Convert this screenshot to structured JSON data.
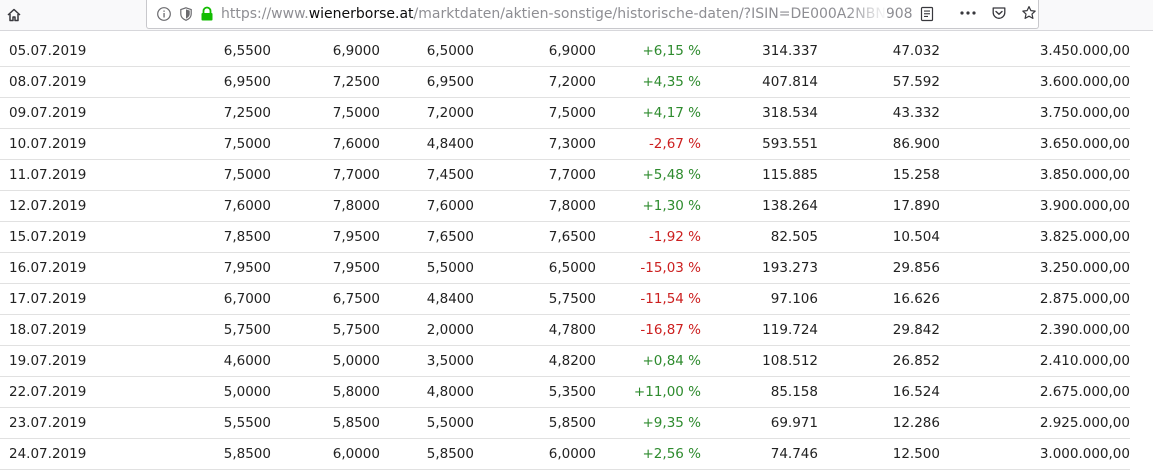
{
  "browser": {
    "url_prefix": "https://www.",
    "url_host": "wienerborse.at",
    "url_path": "/marktdaten/aktien-sonstige/historische-daten/?ISIN=DE000A2NBN908"
  },
  "colors": {
    "positive": "#2e8b2e",
    "negative": "#cc1f1f",
    "secure_lock": "#12bc00"
  },
  "rows": [
    {
      "date": "05.07.2019",
      "first": "6,5500",
      "high": "6,9000",
      "low": "6,5000",
      "last": "6,9000",
      "change": "+6,15 %",
      "dir": "pos",
      "volume": "314.337",
      "trades": "47.032",
      "capital": "3.450.000,00"
    },
    {
      "date": "08.07.2019",
      "first": "6,9500",
      "high": "7,2500",
      "low": "6,9500",
      "last": "7,2000",
      "change": "+4,35 %",
      "dir": "pos",
      "volume": "407.814",
      "trades": "57.592",
      "capital": "3.600.000,00"
    },
    {
      "date": "09.07.2019",
      "first": "7,2500",
      "high": "7,5000",
      "low": "7,2000",
      "last": "7,5000",
      "change": "+4,17 %",
      "dir": "pos",
      "volume": "318.534",
      "trades": "43.332",
      "capital": "3.750.000,00"
    },
    {
      "date": "10.07.2019",
      "first": "7,5000",
      "high": "7,6000",
      "low": "4,8400",
      "last": "7,3000",
      "change": "-2,67 %",
      "dir": "neg",
      "volume": "593.551",
      "trades": "86.900",
      "capital": "3.650.000,00"
    },
    {
      "date": "11.07.2019",
      "first": "7,5000",
      "high": "7,7000",
      "low": "7,4500",
      "last": "7,7000",
      "change": "+5,48 %",
      "dir": "pos",
      "volume": "115.885",
      "trades": "15.258",
      "capital": "3.850.000,00"
    },
    {
      "date": "12.07.2019",
      "first": "7,6000",
      "high": "7,8000",
      "low": "7,6000",
      "last": "7,8000",
      "change": "+1,30 %",
      "dir": "pos",
      "volume": "138.264",
      "trades": "17.890",
      "capital": "3.900.000,00"
    },
    {
      "date": "15.07.2019",
      "first": "7,8500",
      "high": "7,9500",
      "low": "7,6500",
      "last": "7,6500",
      "change": "-1,92 %",
      "dir": "neg",
      "volume": "82.505",
      "trades": "10.504",
      "capital": "3.825.000,00"
    },
    {
      "date": "16.07.2019",
      "first": "7,9500",
      "high": "7,9500",
      "low": "5,5000",
      "last": "6,5000",
      "change": "-15,03 %",
      "dir": "neg",
      "volume": "193.273",
      "trades": "29.856",
      "capital": "3.250.000,00"
    },
    {
      "date": "17.07.2019",
      "first": "6,7000",
      "high": "6,7500",
      "low": "4,8400",
      "last": "5,7500",
      "change": "-11,54 %",
      "dir": "neg",
      "volume": "97.106",
      "trades": "16.626",
      "capital": "2.875.000,00"
    },
    {
      "date": "18.07.2019",
      "first": "5,7500",
      "high": "5,7500",
      "low": "2,0000",
      "last": "4,7800",
      "change": "-16,87 %",
      "dir": "neg",
      "volume": "119.724",
      "trades": "29.842",
      "capital": "2.390.000,00"
    },
    {
      "date": "19.07.2019",
      "first": "4,6000",
      "high": "5,0000",
      "low": "3,5000",
      "last": "4,8200",
      "change": "+0,84 %",
      "dir": "pos",
      "volume": "108.512",
      "trades": "26.852",
      "capital": "2.410.000,00"
    },
    {
      "date": "22.07.2019",
      "first": "5,0000",
      "high": "5,8000",
      "low": "4,8000",
      "last": "5,3500",
      "change": "+11,00 %",
      "dir": "pos",
      "volume": "85.158",
      "trades": "16.524",
      "capital": "2.675.000,00"
    },
    {
      "date": "23.07.2019",
      "first": "5,5500",
      "high": "5,8500",
      "low": "5,5000",
      "last": "5,8500",
      "change": "+9,35 %",
      "dir": "pos",
      "volume": "69.971",
      "trades": "12.286",
      "capital": "2.925.000,00"
    },
    {
      "date": "24.07.2019",
      "first": "5,8500",
      "high": "6,0000",
      "low": "5,8500",
      "last": "6,0000",
      "change": "+2,56 %",
      "dir": "pos",
      "volume": "74.746",
      "trades": "12.500",
      "capital": "3.000.000,00"
    }
  ]
}
